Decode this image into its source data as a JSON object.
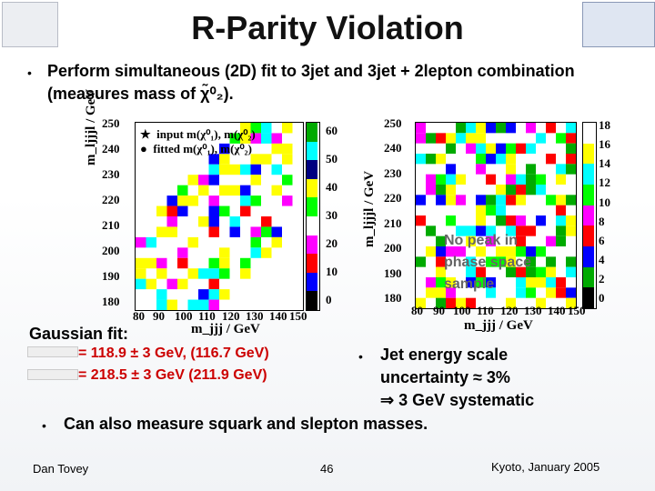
{
  "title": "R-Parity Violation",
  "bullets": [
    {
      "text": "Perform simultaneous (2D) fit to 3jet and 3jet + 2lepton combination"
    },
    {
      "text": "(measures mass of χ̃⁰₂)."
    }
  ],
  "left_plot": {
    "ylabel": "m_ljjjl / GeV",
    "xlabel": "m_jjj / GeV",
    "y_ticks": [
      "250",
      "240",
      "230",
      "220",
      "210",
      "200",
      "190",
      "180"
    ],
    "x_ticks": [
      "80",
      "90",
      "100",
      "110",
      "120",
      "130",
      "140",
      "150"
    ],
    "colorbar_ticks": [
      "60",
      "50",
      "40",
      "30",
      "20",
      "10",
      "0"
    ],
    "legend": [
      {
        "symbol": "★",
        "text": "input m(χ⁰₁), m(χ⁰₂)"
      },
      {
        "symbol": "●",
        "text": "fitted m(χ⁰₁), m(χ⁰₂)"
      }
    ]
  },
  "right_plot": {
    "ylabel": "m_ljjjl / GeV",
    "xlabel": "m_jjj / GeV",
    "y_ticks": [
      "250",
      "240",
      "230",
      "220",
      "210",
      "200",
      "190",
      "180"
    ],
    "x_ticks": [
      "80",
      "90",
      "100",
      "110",
      "120",
      "130",
      "140",
      "150"
    ],
    "colorbar_ticks": [
      "18",
      "16",
      "14",
      "12",
      "10",
      "8",
      "6",
      "4",
      "2",
      "0"
    ],
    "annotation": [
      "No peak in",
      "phase space",
      "sample"
    ]
  },
  "gaussian": {
    "heading": "Gaussian fit:",
    "line1": "= 118.9 ± 3 GeV, (116.7 GeV)",
    "line2": "= 218.5 ± 3 GeV  (211.9 GeV)"
  },
  "jet_energy": {
    "line1": "Jet energy scale",
    "line2": "uncertainty ≈ 3%",
    "line3": "⇒ 3 GeV systematic"
  },
  "squark_bullet": "Can also measure squark and slepton masses.",
  "footer": {
    "author": "Dan Tovey",
    "page": "46",
    "venue": "Kyoto, January 2005"
  },
  "colors": {
    "colorbar_left": [
      "#00aa00",
      "#00ffff",
      "#000080",
      "#ffff00",
      "#00ff00",
      "#ffffff",
      "#ff00ff",
      "#ff0000",
      "#0000ff",
      "#000000"
    ],
    "colorbar_right": [
      "#ffffff",
      "#ffff00",
      "#00ffff",
      "#00ff00",
      "#ff00ff",
      "#ff0000",
      "#0000ff",
      "#00aa00",
      "#000000"
    ]
  }
}
